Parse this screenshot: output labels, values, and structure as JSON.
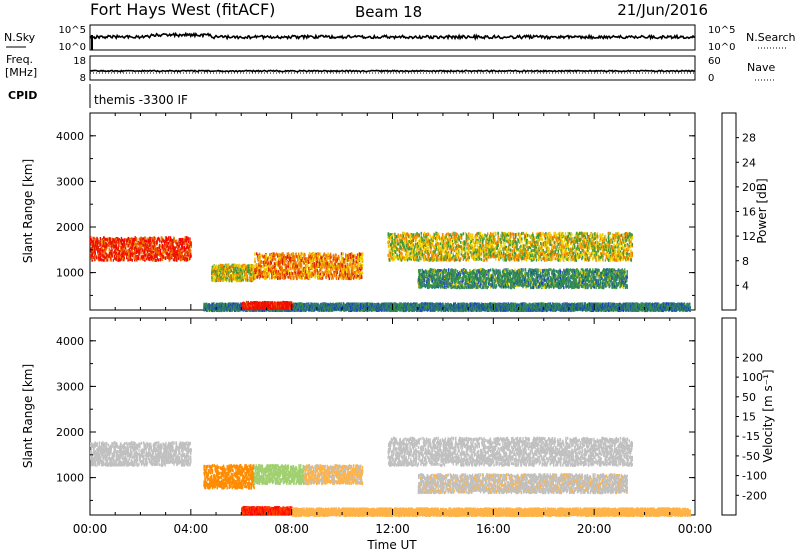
{
  "header": {
    "station": "Fort Hays West (fitACF)",
    "beam": "Beam 18",
    "date": "21/Jun/2016"
  },
  "params": {
    "nsky_label": "N.Sky",
    "nsearch_label": "N.Search",
    "freq_label_1": "Freq.",
    "freq_label_2": "[MHz]",
    "nave_label": "Nave",
    "cpid_label": "CPID",
    "cpid_value": "themis -3300 IF",
    "noise_ticks_left": [
      "10^5",
      "10^0"
    ],
    "noise_ticks_right": [
      "10^5",
      "10^0"
    ],
    "freq_ticks": [
      "18",
      "8"
    ],
    "nave_ticks": [
      "60",
      "0"
    ]
  },
  "colors": {
    "power_scale": [
      "#0000ff",
      "#1f3fbf",
      "#2e7d72",
      "#3a9a3a",
      "#f0d000",
      "#f08000",
      "#e02000",
      "#ff0000"
    ],
    "velocity_scale": [
      "#ff0000",
      "#ff4a00",
      "#ff8c00",
      "#ffb347",
      "#c0c0c0",
      "#a0d070",
      "#3cb83c",
      "#2a7a50",
      "#2040a0",
      "#0000ff"
    ]
  },
  "chart_data": [
    {
      "type": "heatmap",
      "ylabel": "Slant Range [km]",
      "xlabel": "Time UT",
      "x_ticks": [
        "00:00",
        "04:00",
        "08:00",
        "12:00",
        "16:00",
        "20:00",
        "00:00"
      ],
      "y_ticks": [
        1000,
        2000,
        3000,
        4000
      ],
      "ylim": [
        180,
        4500
      ],
      "colorbar": {
        "label": "Power [dB]",
        "ticks": [
          4,
          8,
          12,
          16,
          20,
          24,
          28
        ]
      },
      "regions": [
        {
          "t0": 0.0,
          "t1": 4.0,
          "r0": 1300,
          "r1": 1800,
          "level": 26
        },
        {
          "t0": 4.8,
          "t1": 6.5,
          "r0": 850,
          "r1": 1200,
          "level": 18
        },
        {
          "t0": 6.5,
          "t1": 10.8,
          "r0": 900,
          "r1": 1450,
          "level": 22
        },
        {
          "t0": 11.8,
          "t1": 21.5,
          "r0": 1300,
          "r1": 1900,
          "level": 18
        },
        {
          "t0": 13.0,
          "t1": 21.3,
          "r0": 700,
          "r1": 1100,
          "level": 12
        },
        {
          "t0": 4.5,
          "t1": 23.8,
          "r0": 200,
          "r1": 350,
          "level": 10
        },
        {
          "t0": 6.0,
          "t1": 8.0,
          "r0": 240,
          "r1": 380,
          "level": 28
        }
      ]
    },
    {
      "type": "heatmap",
      "ylabel": "Slant Range [km]",
      "xlabel": "Time UT",
      "x_ticks": [
        "00:00",
        "04:00",
        "08:00",
        "12:00",
        "16:00",
        "20:00",
        "00:00"
      ],
      "y_ticks": [
        1000,
        2000,
        3000,
        4000
      ],
      "ylim": [
        180,
        4500
      ],
      "colorbar": {
        "label": "Velocity [m s⁻¹]",
        "ticks": [
          -200,
          -100,
          -50,
          -15,
          15,
          50,
          100,
          200
        ]
      },
      "regions": [
        {
          "t0": 0.0,
          "t1": 4.0,
          "r0": 1300,
          "r1": 1800,
          "level": 0
        },
        {
          "t0": 4.5,
          "t1": 6.5,
          "r0": 800,
          "r1": 1300,
          "level": -70
        },
        {
          "t0": 6.5,
          "t1": 8.5,
          "r0": 900,
          "r1": 1300,
          "level": 30
        },
        {
          "t0": 8.5,
          "t1": 10.8,
          "r0": 900,
          "r1": 1300,
          "level": -20
        },
        {
          "t0": 11.8,
          "t1": 21.5,
          "r0": 1300,
          "r1": 1900,
          "level": 0
        },
        {
          "t0": 13.0,
          "t1": 21.3,
          "r0": 700,
          "r1": 1100,
          "level": -5
        },
        {
          "t0": 6.0,
          "t1": 8.0,
          "r0": 240,
          "r1": 380,
          "level": -200
        },
        {
          "t0": 8.0,
          "t1": 23.8,
          "r0": 200,
          "r1": 350,
          "level": -30
        }
      ]
    }
  ]
}
